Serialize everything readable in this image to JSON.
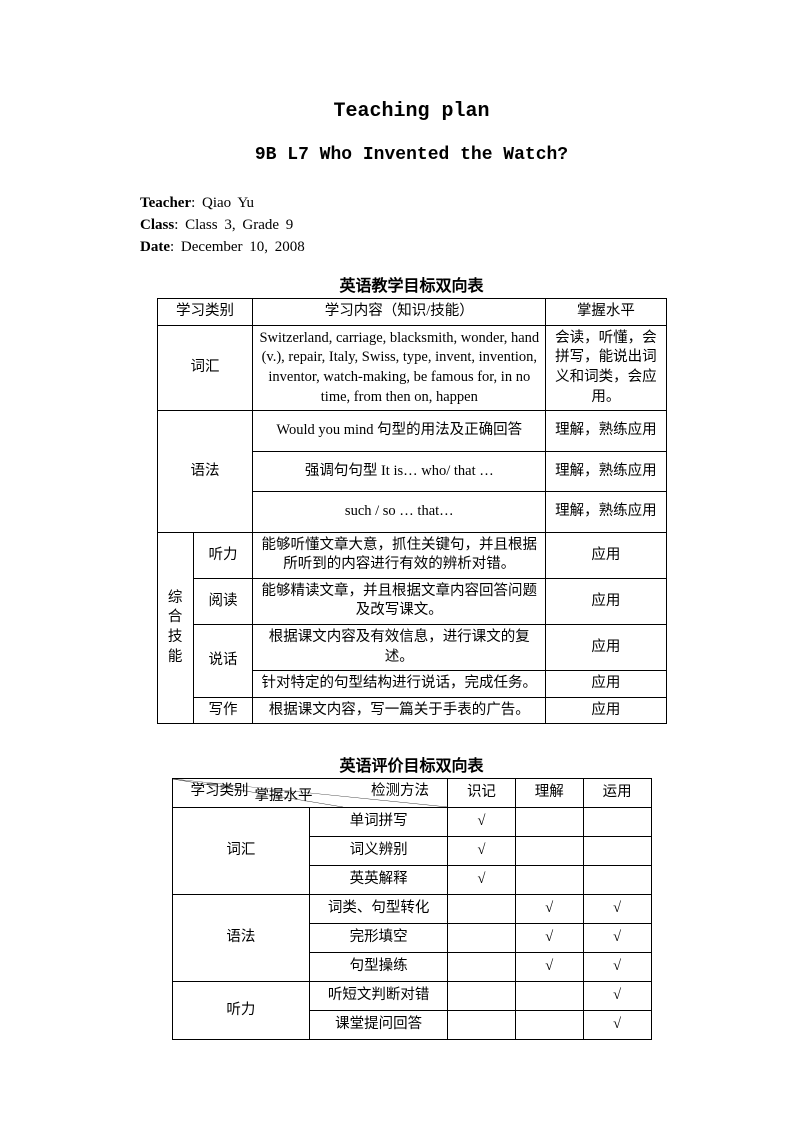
{
  "title_main": "Teaching plan",
  "title_sub": "9B L7 Who Invented the Watch?",
  "meta": {
    "teacher_label": "Teacher",
    "teacher_value": ": Qiao Yu",
    "class_label": "Class",
    "class_value": ": Class 3, Grade 9",
    "date_label": "Date",
    "date_value": ": December 10, 2008"
  },
  "table1": {
    "caption": "英语教学目标双向表",
    "header": {
      "c1": "学习类别",
      "c2": "学习内容（知识/技能）",
      "c3": "掌握水平"
    },
    "vocab_label": "词汇",
    "vocab_content": "Switzerland, carriage, blacksmith, wonder, hand (v.), repair, Italy, Swiss, type, invent, invention, inventor, watch-making, be famous for, in no time, from then on, happen",
    "vocab_level": "会读，听懂，会拼写，能说出词义和词类，会应用。",
    "grammar_label": "语法",
    "grammar1_content": "Would you mind 句型的用法及正确回答",
    "grammar1_level": "理解，熟练应用",
    "grammar2_content": "强调句句型 It is… who/ that …",
    "grammar2_level": "理解，熟练应用",
    "grammar3_content": "such / so … that…",
    "grammar3_level": "理解，熟练应用",
    "comp_label": "综合技能",
    "listen_label": "听力",
    "listen_content": "能够听懂文章大意，抓住关键句，并且根据所听到的内容进行有效的辨析对错。",
    "listen_level": "应用",
    "read_label": "阅读",
    "read_content": "能够精读文章，并且根据文章内容回答问题及改写课文。",
    "read_level": "应用",
    "speak_label": "说话",
    "speak1_content": "根据课文内容及有效信息，进行课文的复述。",
    "speak1_level": "应用",
    "speak2_content": "针对特定的句型结构进行说话，完成任务。",
    "speak2_level": "应用",
    "write_label": "写作",
    "write_content": "根据课文内容，写一篇关于手表的广告。",
    "write_level": "应用"
  },
  "table2": {
    "caption": "英语评价目标双向表",
    "diag_top": "掌握水平",
    "diag_left": "学习类别",
    "diag_bottom": "检测方法",
    "col_memorize": "识记",
    "col_understand": "理解",
    "col_apply": "运用",
    "check": "√",
    "rows": [
      {
        "cat": "词汇",
        "span": 3,
        "method": "单词拼写",
        "m": "√",
        "u": "",
        "a": ""
      },
      {
        "method": "词义辨别",
        "m": "√",
        "u": "",
        "a": ""
      },
      {
        "method": "英英解释",
        "m": "√",
        "u": "",
        "a": ""
      },
      {
        "cat": "语法",
        "span": 3,
        "method": "词类、句型转化",
        "m": "",
        "u": "√",
        "a": "√"
      },
      {
        "method": "完形填空",
        "m": "",
        "u": "√",
        "a": "√"
      },
      {
        "method": "句型操练",
        "m": "",
        "u": "√",
        "a": "√"
      },
      {
        "cat": "听力",
        "span": 2,
        "method": "听短文判断对错",
        "m": "",
        "u": "",
        "a": "√"
      },
      {
        "method": "课堂提问回答",
        "m": "",
        "u": "",
        "a": "√"
      }
    ]
  }
}
